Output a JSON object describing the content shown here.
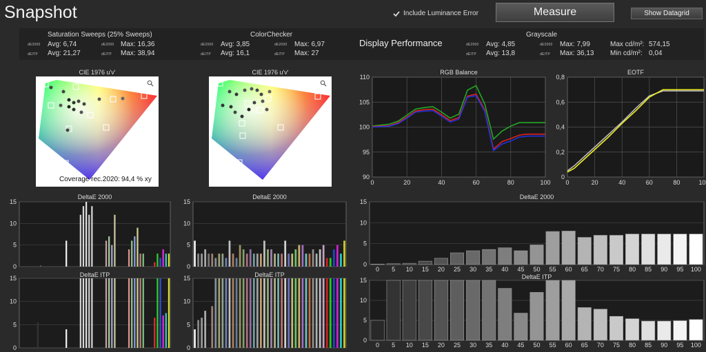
{
  "app": {
    "title": "Snapshot"
  },
  "toolbar": {
    "include_luminance_label": "Include Luminance Error",
    "include_luminance_checked": true,
    "measure_label": "Measure",
    "show_datagrid_label": "Show Datagrid"
  },
  "stats": {
    "saturation": {
      "title": "Saturation Sweeps (25% Sweeps)",
      "de2000_label": "dE2000",
      "deitp_label": "dEITP",
      "de2000_avg": "Avg: 6,74",
      "deitp_avg": "Avg: 21,27",
      "de2000_max_label": "dE2000",
      "deitp_max_label": "dEITP",
      "de2000_max": "Max: 16,36",
      "deitp_max": "Max: 38,94"
    },
    "colorchecker": {
      "title": "ColorChecker",
      "de2000_label": "dE2000",
      "deitp_label": "dEITP",
      "de2000_avg": "Avg: 3,85",
      "deitp_avg": "Avg: 16,1",
      "de2000_max_label": "dE2000",
      "deitp_max_label": "dEITP",
      "de2000_max": "Max: 6,97",
      "deitp_max": "Max: 27"
    },
    "display_performance": "Display Performance",
    "grayscale": {
      "title": "Grayscale",
      "de2000_label": "dE2000",
      "deitp_label": "dEITP",
      "de2000_avg": "Avg: 4,85",
      "deitp_avg": "Avg: 13,8",
      "de2000_max_label": "dE2000",
      "deitp_max_label": "dEITP",
      "de2000_max": "Max: 7,99",
      "deitp_max": "Max: 36,13",
      "max_cd": "Max cd/m²:",
      "max_cd_val": "574,15",
      "min_cd": "Min cd/m²:",
      "min_cd_val": "0,04"
    }
  },
  "cie1": {
    "title": "CIE 1976 u'v'",
    "coverage_label": "Coverage rec.2020:",
    "coverage_value": "94,4 % xy",
    "zoom_icon": "magnifier-icon"
  },
  "cie2": {
    "title": "CIE 1976 u'v'",
    "zoom_icon": "magnifier-icon"
  },
  "chart_data": [
    {
      "id": "rgb-balance",
      "type": "line",
      "title": "RGB Balance",
      "x": [
        0,
        10,
        15,
        20,
        25,
        30,
        35,
        40,
        45,
        50,
        55,
        60,
        65,
        70,
        75,
        80,
        85,
        90,
        95,
        100
      ],
      "xlim": [
        0,
        100
      ],
      "ylim": [
        90,
        110
      ],
      "xticks": [
        0,
        20,
        40,
        60,
        80,
        100
      ],
      "yticks": [
        90,
        95,
        100,
        105,
        110
      ],
      "series": [
        {
          "color": "#22aa22",
          "values": [
            100.2,
            100.6,
            101.2,
            102.4,
            103.6,
            103.9,
            104.1,
            103.0,
            101.8,
            102.6,
            107.4,
            108.3,
            104.6,
            97.6,
            99.2,
            100.2,
            100.9,
            100.9,
            100.9,
            100.9
          ]
        },
        {
          "color": "#dd2222",
          "values": [
            100.1,
            100.3,
            100.9,
            102.0,
            103.2,
            103.5,
            103.6,
            102.5,
            101.3,
            101.9,
            106.2,
            106.6,
            103.4,
            95.6,
            97.1,
            97.7,
            98.4,
            98.6,
            98.6,
            98.6
          ]
        },
        {
          "color": "#2233dd",
          "values": [
            100.0,
            100.2,
            100.7,
            101.8,
            103.0,
            103.2,
            103.3,
            102.2,
            101.0,
            101.6,
            106.0,
            106.3,
            103.1,
            95.3,
            96.6,
            97.2,
            98.0,
            98.2,
            98.2,
            98.2
          ]
        }
      ]
    },
    {
      "id": "eotf",
      "type": "line",
      "title": "EOTF",
      "x": [
        0,
        5,
        10,
        20,
        30,
        40,
        50,
        60,
        70,
        80,
        90,
        100
      ],
      "xlim": [
        0,
        100
      ],
      "ylim": [
        0,
        0.8
      ],
      "xticks": [
        0,
        20,
        40,
        60,
        80,
        100
      ],
      "yticks": [
        0,
        0.2,
        0.4,
        0.6,
        0.8
      ],
      "ytick_labels": [
        "0",
        "0,2",
        "0,4",
        "0,6",
        "0,8"
      ],
      "series": [
        {
          "color": "#bbbbbb",
          "values": [
            0.05,
            0.09,
            0.14,
            0.24,
            0.34,
            0.44,
            0.55,
            0.65,
            0.69,
            0.69,
            0.69,
            0.69
          ]
        },
        {
          "color": "#eeee22",
          "values": [
            0.04,
            0.07,
            0.12,
            0.22,
            0.32,
            0.43,
            0.53,
            0.64,
            0.7,
            0.7,
            0.7,
            0.7
          ]
        }
      ]
    },
    {
      "id": "sat-de2000",
      "type": "bar",
      "title": "DeltaE 2000",
      "ylim": [
        0,
        15
      ],
      "yticks": [
        0,
        5,
        10,
        15
      ],
      "values": [
        0,
        0,
        0,
        0,
        0,
        0,
        0,
        0.3,
        0,
        0,
        0,
        0,
        0,
        0,
        0,
        0,
        6,
        0,
        0,
        0,
        0,
        12,
        14,
        15,
        12,
        14,
        0,
        0,
        0,
        0,
        6,
        7,
        5,
        12,
        0,
        0,
        0,
        0,
        4,
        6,
        7,
        9,
        3,
        3,
        0,
        0,
        0,
        1,
        3,
        2,
        4,
        3,
        3
      ],
      "colors": [
        "#888",
        "#888",
        "#888",
        "#888",
        "#888",
        "#888",
        "#888",
        "#555",
        "#888",
        "#888",
        "#888",
        "#888",
        "#888",
        "#888",
        "#888",
        "#888",
        "#eeeeee",
        "#888",
        "#888",
        "#888",
        "#888",
        "#cfcfcf",
        "#d8d8d8",
        "#e0e0e0",
        "#cccccc",
        "#d4d4d4",
        "#888",
        "#888",
        "#888",
        "#888",
        "#c8a0a0",
        "#a8c8a0",
        "#a8a8c8",
        "#c8c8a0",
        "#888",
        "#888",
        "#888",
        "#888",
        "#e09090",
        "#90c890",
        "#90a0e0",
        "#d0d090",
        "#c08080",
        "#80c080",
        "#888",
        "#888",
        "#888",
        "#dd3030",
        "#30cc30",
        "#3050dd",
        "#dd30dd",
        "#30cccc",
        "#dddd30"
      ]
    },
    {
      "id": "sat-deitp",
      "type": "bar",
      "title": "DeltaE ITP",
      "ylim": [
        0,
        15
      ],
      "yticks": [
        0,
        5,
        10,
        15
      ],
      "values": [
        0,
        0,
        0,
        0,
        0,
        0,
        5.5,
        0,
        0,
        0,
        0,
        0,
        0,
        0,
        0,
        0,
        4,
        0,
        0,
        0,
        0,
        15,
        15,
        15,
        15,
        15,
        0,
        0,
        0,
        0,
        15,
        15,
        15,
        15,
        0,
        0,
        0,
        0,
        15,
        15,
        15,
        15,
        15,
        15,
        0,
        0,
        0,
        6.5,
        15,
        15,
        7,
        7.5,
        15
      ],
      "colors": [
        "#888",
        "#888",
        "#888",
        "#888",
        "#888",
        "#888",
        "#333",
        "#888",
        "#888",
        "#888",
        "#888",
        "#888",
        "#888",
        "#888",
        "#888",
        "#888",
        "#eeeeee",
        "#888",
        "#888",
        "#888",
        "#888",
        "#cfcfcf",
        "#d8d8d8",
        "#e0e0e0",
        "#cccccc",
        "#d4d4d4",
        "#888",
        "#888",
        "#888",
        "#888",
        "#c8a0a0",
        "#a8c8a0",
        "#a8a8c8",
        "#c8c8a0",
        "#888",
        "#888",
        "#888",
        "#888",
        "#e09090",
        "#90c890",
        "#90a0e0",
        "#d0d090",
        "#c08080",
        "#80c080",
        "#888",
        "#888",
        "#888",
        "#dd3030",
        "#30cc30",
        "#3050dd",
        "#dd30dd",
        "#30cccc",
        "#dddd30"
      ]
    },
    {
      "id": "cc-de2000",
      "type": "bar",
      "title": "DeltaE 2000",
      "ylim": [
        0,
        15
      ],
      "yticks": [
        0,
        5,
        10,
        15
      ],
      "values": [
        6,
        3,
        3,
        4,
        3,
        3,
        2,
        3,
        3,
        2,
        6,
        3,
        2,
        5,
        4,
        3,
        4,
        3,
        3,
        3,
        6,
        4,
        4,
        3,
        3,
        3,
        6,
        3,
        3,
        4,
        5,
        5,
        3,
        3,
        4,
        3,
        4,
        5,
        2,
        2,
        4,
        5,
        3,
        6
      ],
      "colors": [
        "#eeeeee",
        "#888",
        "#999",
        "#aaa",
        "#777",
        "#a08070",
        "#8090a0",
        "#a0a070",
        "#90a090",
        "#7080b0",
        "#c0c0c0",
        "#b08060",
        "#6080a0",
        "#a09060",
        "#80a070",
        "#b07080",
        "#9070a0",
        "#70a0a0",
        "#a0a0a0",
        "#c0a070",
        "#c0c0c0",
        "#90b070",
        "#a080b0",
        "#b0b080",
        "#70b0b0",
        "#c07070",
        "#d0d0d0",
        "#7070c0",
        "#c0c070",
        "#70c070",
        "#d0b070",
        "#a070c0",
        "#70c0c0",
        "#c07040",
        "#909090",
        "#b0b0b0",
        "#c0c0c0",
        "#c0a0c0",
        "#cc2222",
        "#22cc22",
        "#2244cc",
        "#cc22cc",
        "#22cccc",
        "#cccc22"
      ]
    },
    {
      "id": "cc-deitp",
      "type": "bar",
      "title": "DeltaE ITP",
      "ylim": [
        0,
        15
      ],
      "yticks": [
        0,
        5,
        10,
        15
      ],
      "values": [
        4,
        6,
        6.5,
        8,
        4,
        9,
        15,
        15,
        15,
        15,
        15,
        15,
        15,
        15,
        15,
        15,
        15,
        15,
        15,
        15,
        15,
        15,
        15,
        15,
        15,
        15,
        15,
        15,
        15,
        15,
        15,
        15,
        15,
        15,
        15,
        15,
        15,
        15,
        15,
        15,
        15,
        15,
        15,
        15
      ],
      "colors": [
        "#eeeeee",
        "#888",
        "#999",
        "#aaa",
        "#222",
        "#a08070",
        "#8090a0",
        "#a0a070",
        "#90a090",
        "#7080b0",
        "#c0c0c0",
        "#b08060",
        "#6080a0",
        "#a09060",
        "#80a070",
        "#b07080",
        "#9070a0",
        "#70a0a0",
        "#a0a0a0",
        "#c0a070",
        "#c0c0c0",
        "#90b070",
        "#a080b0",
        "#b0b080",
        "#70b0b0",
        "#c07070",
        "#d0d0d0",
        "#7070c0",
        "#c0c070",
        "#70c070",
        "#d0b070",
        "#a070c0",
        "#70c0c0",
        "#c07040",
        "#909090",
        "#b0b0b0",
        "#c0c0c0",
        "#c0a0c0",
        "#cc2222",
        "#22cc22",
        "#2244cc",
        "#cc22cc",
        "#22cccc",
        "#cccc22"
      ]
    },
    {
      "id": "gs-de2000",
      "type": "bar",
      "title": "DeltaE 2000",
      "ylim": [
        0,
        15
      ],
      "yticks": [
        0,
        5,
        10,
        15
      ],
      "categories": [
        "0",
        "5",
        "10",
        "15",
        "20",
        "25",
        "30",
        "35",
        "40",
        "45",
        "50",
        "55",
        "60",
        "65",
        "70",
        "75",
        "80",
        "85",
        "90",
        "95",
        "100"
      ],
      "values": [
        0.1,
        0.2,
        0.3,
        0.8,
        1.5,
        2.8,
        3.3,
        3.6,
        4.0,
        3.3,
        4.7,
        7.9,
        8.0,
        6.5,
        7.0,
        7.0,
        7.3,
        7.3,
        7.3,
        7.3,
        7.3
      ]
    },
    {
      "id": "gs-deitp",
      "type": "bar",
      "title": "DeltaE ITP",
      "ylim": [
        0,
        15
      ],
      "yticks": [
        0,
        5,
        10,
        15
      ],
      "categories": [
        "0",
        "5",
        "10",
        "15",
        "20",
        "25",
        "30",
        "35",
        "40",
        "45",
        "50",
        "55",
        "60",
        "65",
        "70",
        "75",
        "80",
        "85",
        "90",
        "95",
        "100"
      ],
      "values": [
        5,
        15,
        15,
        15,
        15,
        15,
        15,
        15,
        13,
        6.8,
        12,
        15,
        15,
        8.2,
        7.8,
        6,
        5.4,
        4.8,
        4.8,
        4.9,
        5.2
      ]
    }
  ]
}
